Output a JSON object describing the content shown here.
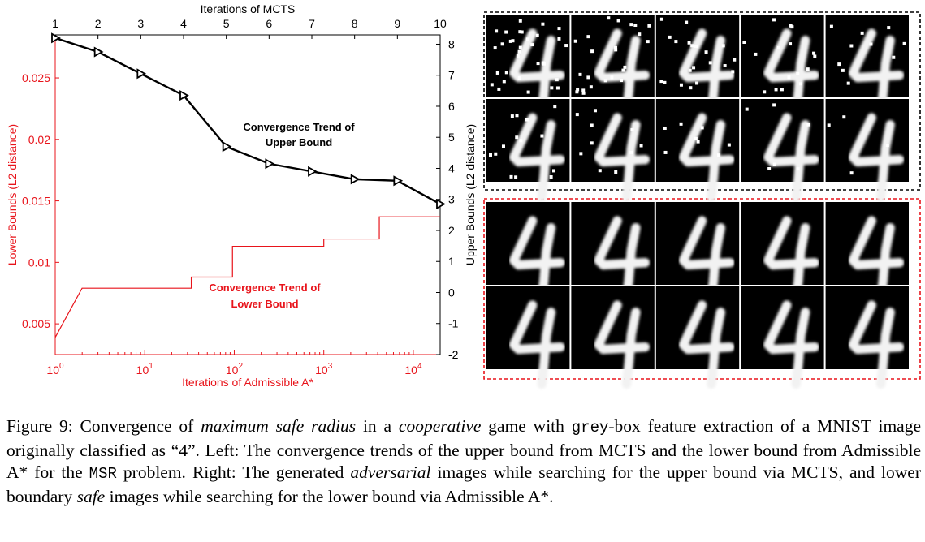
{
  "chart_data": {
    "type": "line",
    "title": "",
    "top_xlabel": "Iterations of MCTS",
    "bottom_xlabel": "Iterations of Admissible A*",
    "left_ylabel": "Lower Bounds (L2 distance)",
    "right_ylabel": "Upper Bounds (L2 distance)",
    "top_x_ticks": [
      "1",
      "2",
      "3",
      "4",
      "5",
      "6",
      "7",
      "8",
      "9",
      "10"
    ],
    "top_xlim": [
      1,
      10
    ],
    "right_y_ticks": [
      "8",
      "7",
      "6",
      "5",
      "4",
      "3",
      "2",
      "1",
      "0",
      "-1",
      "-2"
    ],
    "right_ylim": [
      -2,
      8.3
    ],
    "bottom_x_ticks": [
      {
        "base": "10",
        "exp": "0",
        "value": 0
      },
      {
        "base": "10",
        "exp": "1",
        "value": 1
      },
      {
        "base": "10",
        "exp": "2",
        "value": 2
      },
      {
        "base": "10",
        "exp": "3",
        "value": 3
      },
      {
        "base": "10",
        "exp": "4",
        "value": 4
      }
    ],
    "bottom_xlim_log10": [
      0,
      4.3
    ],
    "left_y_ticks": [
      "0.025",
      "0.02",
      "0.015",
      "0.01",
      "0.005"
    ],
    "left_ylim": [
      0.0025,
      0.0285
    ],
    "series": [
      {
        "name": "Convergence Trend of Upper Bound",
        "color": "#000000",
        "axis": "top-right",
        "x": [
          1,
          2,
          3,
          4,
          5,
          6,
          7,
          8,
          9,
          10
        ],
        "y": [
          8.2,
          7.75,
          7.05,
          6.35,
          4.7,
          4.15,
          3.9,
          3.65,
          3.6,
          2.85
        ]
      },
      {
        "name": "Convergence Trend of Lower Bound",
        "color": "#e8141b",
        "axis": "bottom-left",
        "step_points_log10x": [
          [
            0.0,
            0.0039
          ],
          [
            0.3,
            0.0079
          ],
          [
            1.52,
            0.0079
          ],
          [
            1.52,
            0.0088
          ],
          [
            1.98,
            0.0088
          ],
          [
            1.98,
            0.0113
          ],
          [
            3.0,
            0.0113
          ],
          [
            3.0,
            0.0119
          ],
          [
            3.62,
            0.0119
          ],
          [
            3.62,
            0.0137
          ],
          [
            4.3,
            0.0137
          ]
        ]
      }
    ],
    "annotations": [
      {
        "lines": [
          "Convergence Trend of",
          "Upper Bound"
        ],
        "color": "#000000"
      },
      {
        "lines": [
          "Convergence Trend of",
          "Lower Bound"
        ],
        "color": "#e8141b"
      }
    ],
    "grid": false
  },
  "panels": {
    "upper_frame_color": "#000000",
    "lower_frame_color": "#e8141b",
    "rows": 2,
    "cols": 5,
    "upper_noise_levels": [
      [
        0.16,
        0.12,
        0.1,
        0.08,
        0.05
      ],
      [
        0.07,
        0.05,
        0.04,
        0.03,
        0.02
      ]
    ],
    "lower_noise_levels": [
      [
        0,
        0,
        0,
        0,
        0
      ],
      [
        0,
        0,
        0,
        0,
        0
      ]
    ]
  },
  "caption": {
    "p1": "Figure 9: Convergence of ",
    "i1": "maximum safe radius",
    "p2": " in a ",
    "i2": "cooperative",
    "p3": " game with ",
    "m1": "grey",
    "p4": "-box feature extraction of a MNIST image originally classified as “4”. Left: The convergence trends of the upper bound from MCTS and the lower bound from Admissible A* for the ",
    "m2": "MSR",
    "p5": " problem. Right: The generated ",
    "i3": "adversarial",
    "p6": " images while searching for the upper bound via MCTS, and lower boundary ",
    "i4": "safe",
    "p7": " images while searching for the lower bound via Admissible A*."
  }
}
